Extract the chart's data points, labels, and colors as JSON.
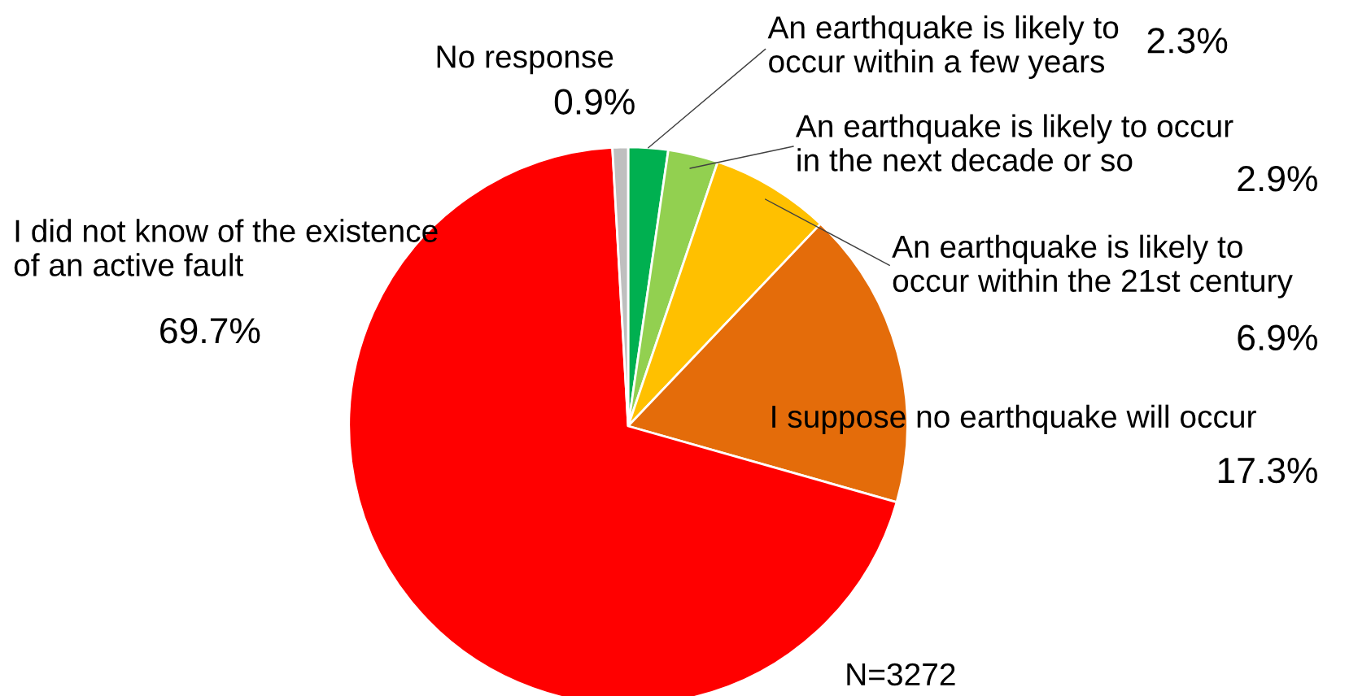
{
  "chart_data": {
    "type": "pie",
    "categories": [
      "An earthquake is likely to\noccur within a few years",
      "An earthquake is likely to occur\nin the next decade or so",
      "An earthquake is likely to\noccur within the 21st century",
      "I suppose no earthquake will occur",
      "I did not know of the existence\nof an active fault",
      "No response"
    ],
    "values": [
      2.3,
      2.9,
      6.9,
      17.3,
      69.7,
      0.9
    ],
    "colors": [
      "#00b050",
      "#92d050",
      "#ffc000",
      "#e46c0a",
      "#ff0000",
      "#bfbfbf"
    ],
    "value_labels": [
      "2.3%",
      "2.9%",
      "6.9%",
      "17.3%",
      "69.7%",
      "0.9%"
    ],
    "annotations": [
      "N=3272"
    ]
  }
}
